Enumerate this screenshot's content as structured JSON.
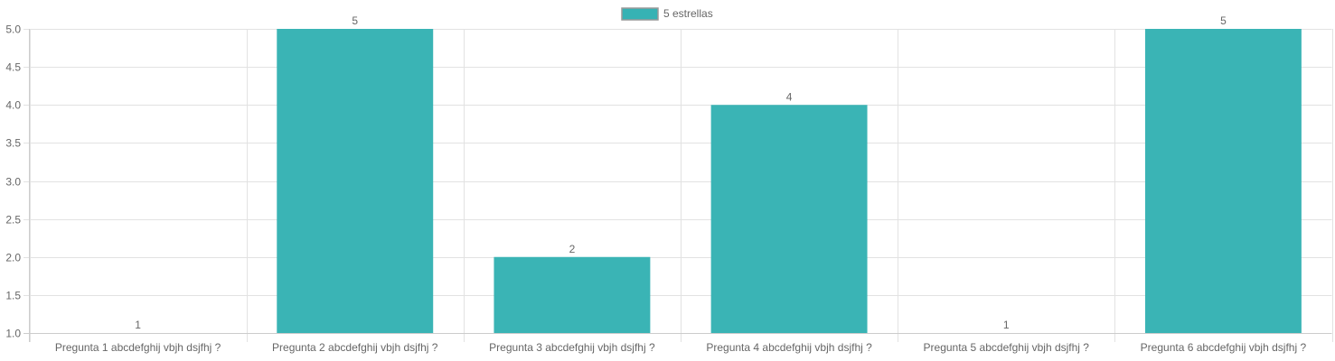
{
  "chart_data": {
    "type": "bar",
    "categories": [
      "Pregunta 1 abcdefghij vbjh dsjfhj ?",
      "Pregunta 2 abcdefghij vbjh dsjfhj ?",
      "Pregunta 3 abcdefghij vbjh dsjfhj ?",
      "Pregunta 4 abcdefghij vbjh dsjfhj ?",
      "Pregunta 5 abcdefghij vbjh dsjfhj ?",
      "Pregunta 6 abcdefghij vbjh dsjfhj ?"
    ],
    "series": [
      {
        "name": "5 estrellas",
        "values": [
          1,
          5,
          2,
          4,
          1,
          5
        ],
        "color": "#36b2b4"
      }
    ],
    "data_labels": [
      "1",
      "5",
      "2",
      "4",
      "1",
      "5"
    ],
    "y_ticks": [
      {
        "value": 5.0,
        "label": "5.0"
      },
      {
        "value": 4.5,
        "label": "4.5"
      },
      {
        "value": 4.0,
        "label": "4.0"
      },
      {
        "value": 3.5,
        "label": "3.5"
      },
      {
        "value": 3.0,
        "label": "3.0"
      },
      {
        "value": 2.5,
        "label": "2.5"
      },
      {
        "value": 2.0,
        "label": "2.0"
      },
      {
        "value": 1.5,
        "label": "1.5"
      },
      {
        "value": 1.0,
        "label": "1.0"
      }
    ],
    "ylim": [
      1,
      5
    ],
    "grid": true,
    "legend": "top-center",
    "title": "",
    "xlabel": "",
    "ylabel": ""
  }
}
